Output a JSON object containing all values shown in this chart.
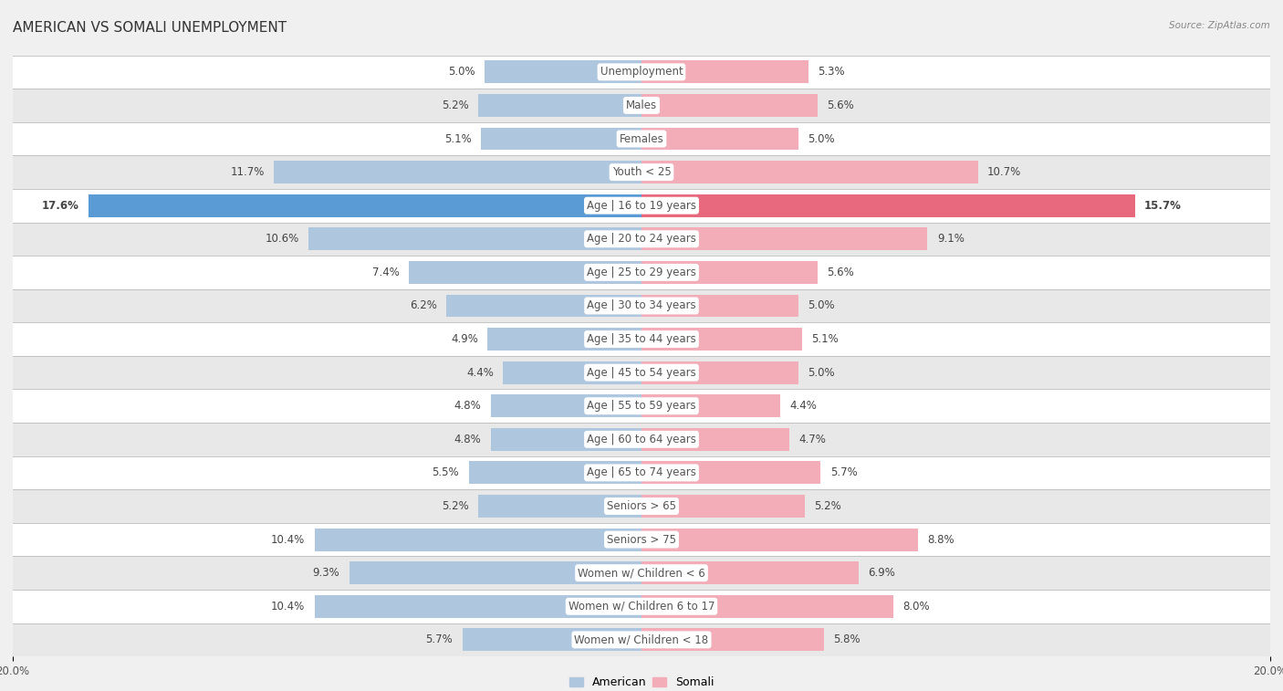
{
  "title": "AMERICAN VS SOMALI UNEMPLOYMENT",
  "source": "Source: ZipAtlas.com",
  "categories": [
    "Unemployment",
    "Males",
    "Females",
    "Youth < 25",
    "Age | 16 to 19 years",
    "Age | 20 to 24 years",
    "Age | 25 to 29 years",
    "Age | 30 to 34 years",
    "Age | 35 to 44 years",
    "Age | 45 to 54 years",
    "Age | 55 to 59 years",
    "Age | 60 to 64 years",
    "Age | 65 to 74 years",
    "Seniors > 65",
    "Seniors > 75",
    "Women w/ Children < 6",
    "Women w/ Children 6 to 17",
    "Women w/ Children < 18"
  ],
  "american": [
    5.0,
    5.2,
    5.1,
    11.7,
    17.6,
    10.6,
    7.4,
    6.2,
    4.9,
    4.4,
    4.8,
    4.8,
    5.5,
    5.2,
    10.4,
    9.3,
    10.4,
    5.7
  ],
  "somali": [
    5.3,
    5.6,
    5.0,
    10.7,
    15.7,
    9.1,
    5.6,
    5.0,
    5.1,
    5.0,
    4.4,
    4.7,
    5.7,
    5.2,
    8.8,
    6.9,
    8.0,
    5.8
  ],
  "american_color": "#aec6de",
  "somali_color": "#f2adb8",
  "american_color_highlight": "#5b9bd5",
  "somali_color_highlight": "#e8697d",
  "axis_max": 20.0,
  "bg_color": "#f0f0f0",
  "row_bg_white": "#ffffff",
  "row_bg_gray": "#e8e8e8",
  "title_fontsize": 11,
  "label_fontsize": 8.5,
  "tick_fontsize": 8.5,
  "legend_fontsize": 9
}
